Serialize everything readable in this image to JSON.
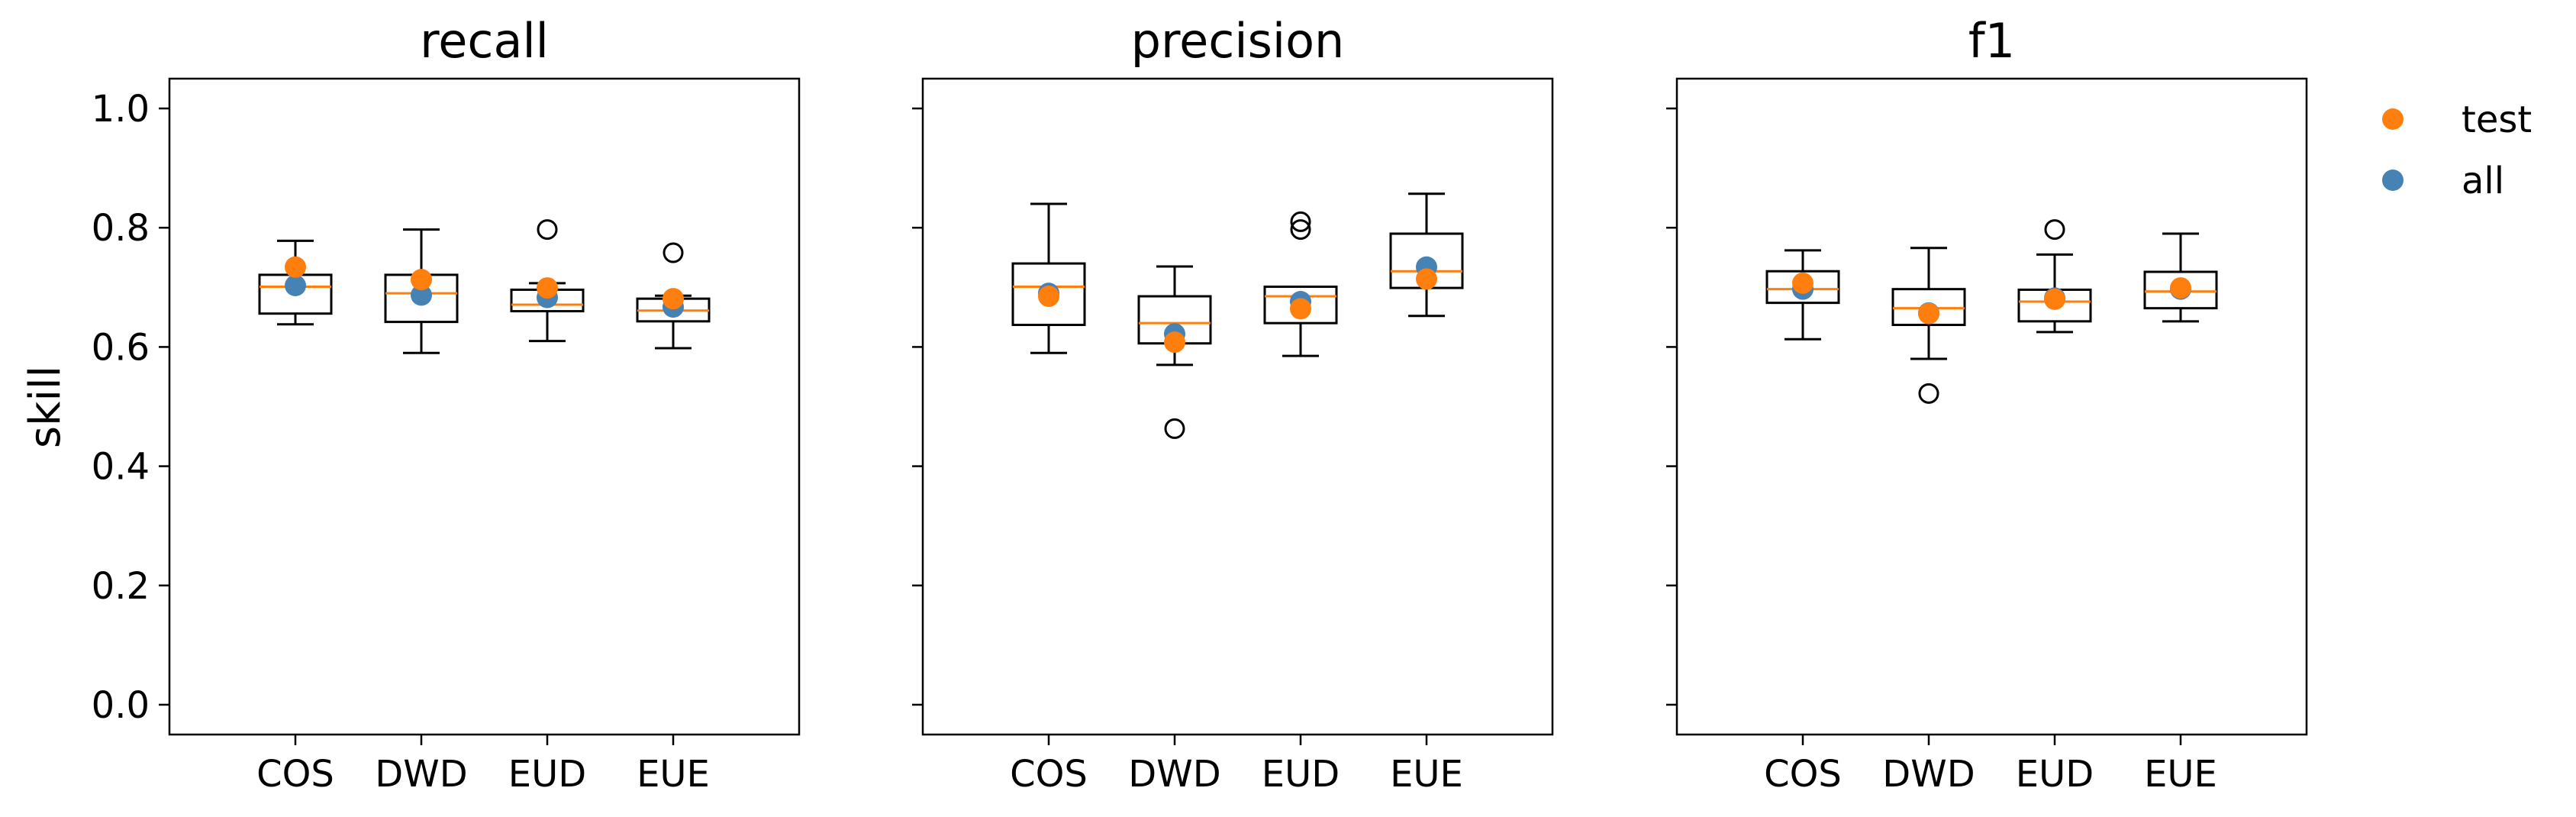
{
  "chart_data": {
    "type": "box",
    "ylabel": "skill",
    "ylim": [
      -0.05,
      1.05
    ],
    "yticks": [
      "0.0",
      "0.2",
      "0.4",
      "0.6",
      "0.8",
      "1.0"
    ],
    "categories": [
      "COS",
      "DWD",
      "EUD",
      "EUE"
    ],
    "legend": {
      "position": "outside-top-right",
      "entries": [
        {
          "name": "test",
          "color": "#ff7f0e"
        },
        {
          "name": "all",
          "color": "#4682b4"
        }
      ]
    },
    "colors": {
      "median": "#ff7f0e",
      "test": "#ff7f0e",
      "all": "#4682b4",
      "box": "#000000"
    },
    "panels": [
      {
        "title": "recall",
        "boxes": [
          {
            "category": "COS",
            "whislo": 0.638,
            "q1": 0.656,
            "med": 0.701,
            "q3": 0.721,
            "whishi": 0.778,
            "fliers": []
          },
          {
            "category": "DWD",
            "whislo": 0.59,
            "q1": 0.642,
            "med": 0.69,
            "q3": 0.721,
            "whishi": 0.797,
            "fliers": []
          },
          {
            "category": "EUD",
            "whislo": 0.61,
            "q1": 0.66,
            "med": 0.671,
            "q3": 0.696,
            "whishi": 0.707,
            "fliers": [
              0.797
            ]
          },
          {
            "category": "EUE",
            "whislo": 0.598,
            "q1": 0.643,
            "med": 0.661,
            "q3": 0.681,
            "whishi": 0.686,
            "fliers": [
              0.758
            ]
          }
        ],
        "all": [
          0.703,
          0.687,
          0.683,
          0.667
        ],
        "test": [
          0.734,
          0.713,
          0.699,
          0.681
        ]
      },
      {
        "title": "precision",
        "boxes": [
          {
            "category": "COS",
            "whislo": 0.59,
            "q1": 0.637,
            "med": 0.701,
            "q3": 0.74,
            "whishi": 0.84,
            "fliers": []
          },
          {
            "category": "DWD",
            "whislo": 0.57,
            "q1": 0.606,
            "med": 0.64,
            "q3": 0.685,
            "whishi": 0.735,
            "fliers": [
              0.463
            ]
          },
          {
            "category": "EUD",
            "whislo": 0.585,
            "q1": 0.64,
            "med": 0.685,
            "q3": 0.701,
            "whishi": 0.701,
            "fliers": [
              0.797,
              0.81
            ]
          },
          {
            "category": "EUE",
            "whislo": 0.652,
            "q1": 0.699,
            "med": 0.727,
            "q3": 0.79,
            "whishi": 0.857,
            "fliers": []
          }
        ],
        "all": [
          0.69,
          0.622,
          0.676,
          0.734
        ],
        "test": [
          0.685,
          0.608,
          0.664,
          0.714
        ]
      },
      {
        "title": "f1",
        "boxes": [
          {
            "category": "COS",
            "whislo": 0.613,
            "q1": 0.674,
            "med": 0.697,
            "q3": 0.727,
            "whishi": 0.762,
            "fliers": []
          },
          {
            "category": "DWD",
            "whislo": 0.58,
            "q1": 0.637,
            "med": 0.665,
            "q3": 0.697,
            "whishi": 0.766,
            "fliers": [
              0.522
            ]
          },
          {
            "category": "EUD",
            "whislo": 0.625,
            "q1": 0.643,
            "med": 0.676,
            "q3": 0.696,
            "whishi": 0.755,
            "fliers": [
              0.797
            ]
          },
          {
            "category": "EUE",
            "whislo": 0.643,
            "q1": 0.665,
            "med": 0.693,
            "q3": 0.726,
            "whishi": 0.79,
            "fliers": []
          }
        ],
        "all": [
          0.697,
          0.657,
          0.682,
          0.697
        ],
        "test": [
          0.707,
          0.656,
          0.68,
          0.699
        ]
      }
    ]
  }
}
